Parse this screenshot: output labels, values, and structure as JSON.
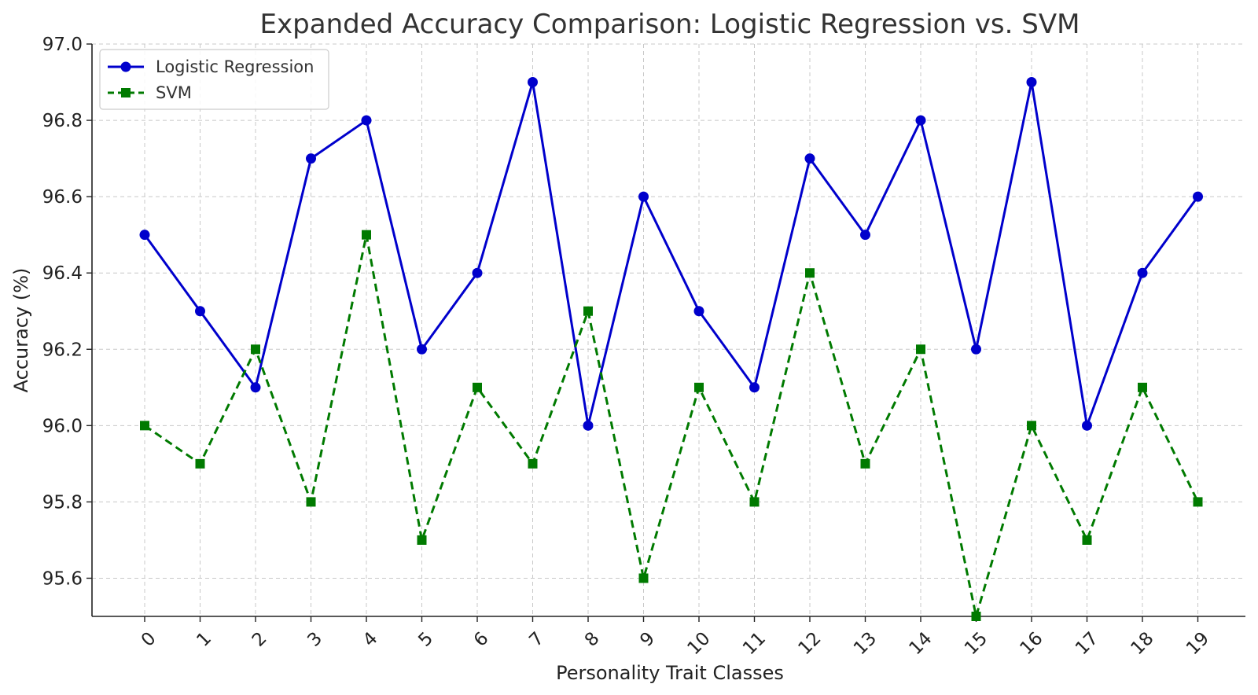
{
  "chart_data": {
    "type": "line",
    "title": "Expanded Accuracy Comparison: Logistic Regression vs. SVM",
    "xlabel": "Personality Trait Classes",
    "ylabel": "Accuracy (%)",
    "x": [
      0,
      1,
      2,
      3,
      4,
      5,
      6,
      7,
      8,
      9,
      10,
      11,
      12,
      13,
      14,
      15,
      16,
      17,
      18,
      19
    ],
    "x_tick_labels": [
      "0",
      "1",
      "2",
      "3",
      "4",
      "5",
      "6",
      "7",
      "8",
      "9",
      "10",
      "11",
      "12",
      "13",
      "14",
      "15",
      "16",
      "17",
      "18",
      "19"
    ],
    "x_tick_rotation_deg": 45,
    "ylim": [
      95.5,
      97.0
    ],
    "y_ticks": [
      95.6,
      95.8,
      96.0,
      96.2,
      96.4,
      96.6,
      96.8,
      97.0
    ],
    "y_tick_labels": [
      "95.6",
      "95.8",
      "96.0",
      "96.2",
      "96.4",
      "96.6",
      "96.8",
      "97.0"
    ],
    "grid": true,
    "legend_position": "top-left",
    "series": [
      {
        "name": "Logistic Regression",
        "color": "#0000cc",
        "line_style": "solid",
        "marker": "circle",
        "values": [
          96.5,
          96.3,
          96.1,
          96.7,
          96.8,
          96.2,
          96.4,
          96.9,
          96.0,
          96.6,
          96.3,
          96.1,
          96.7,
          96.5,
          96.8,
          96.2,
          96.9,
          96.0,
          96.4,
          96.6
        ]
      },
      {
        "name": "SVM",
        "color": "#007a00",
        "line_style": "dashed",
        "marker": "square",
        "values": [
          96.0,
          95.9,
          96.2,
          95.8,
          96.5,
          95.7,
          96.1,
          95.9,
          96.3,
          95.6,
          96.1,
          95.8,
          96.4,
          95.9,
          96.2,
          95.5,
          96.0,
          95.7,
          96.1,
          95.8
        ]
      }
    ]
  }
}
